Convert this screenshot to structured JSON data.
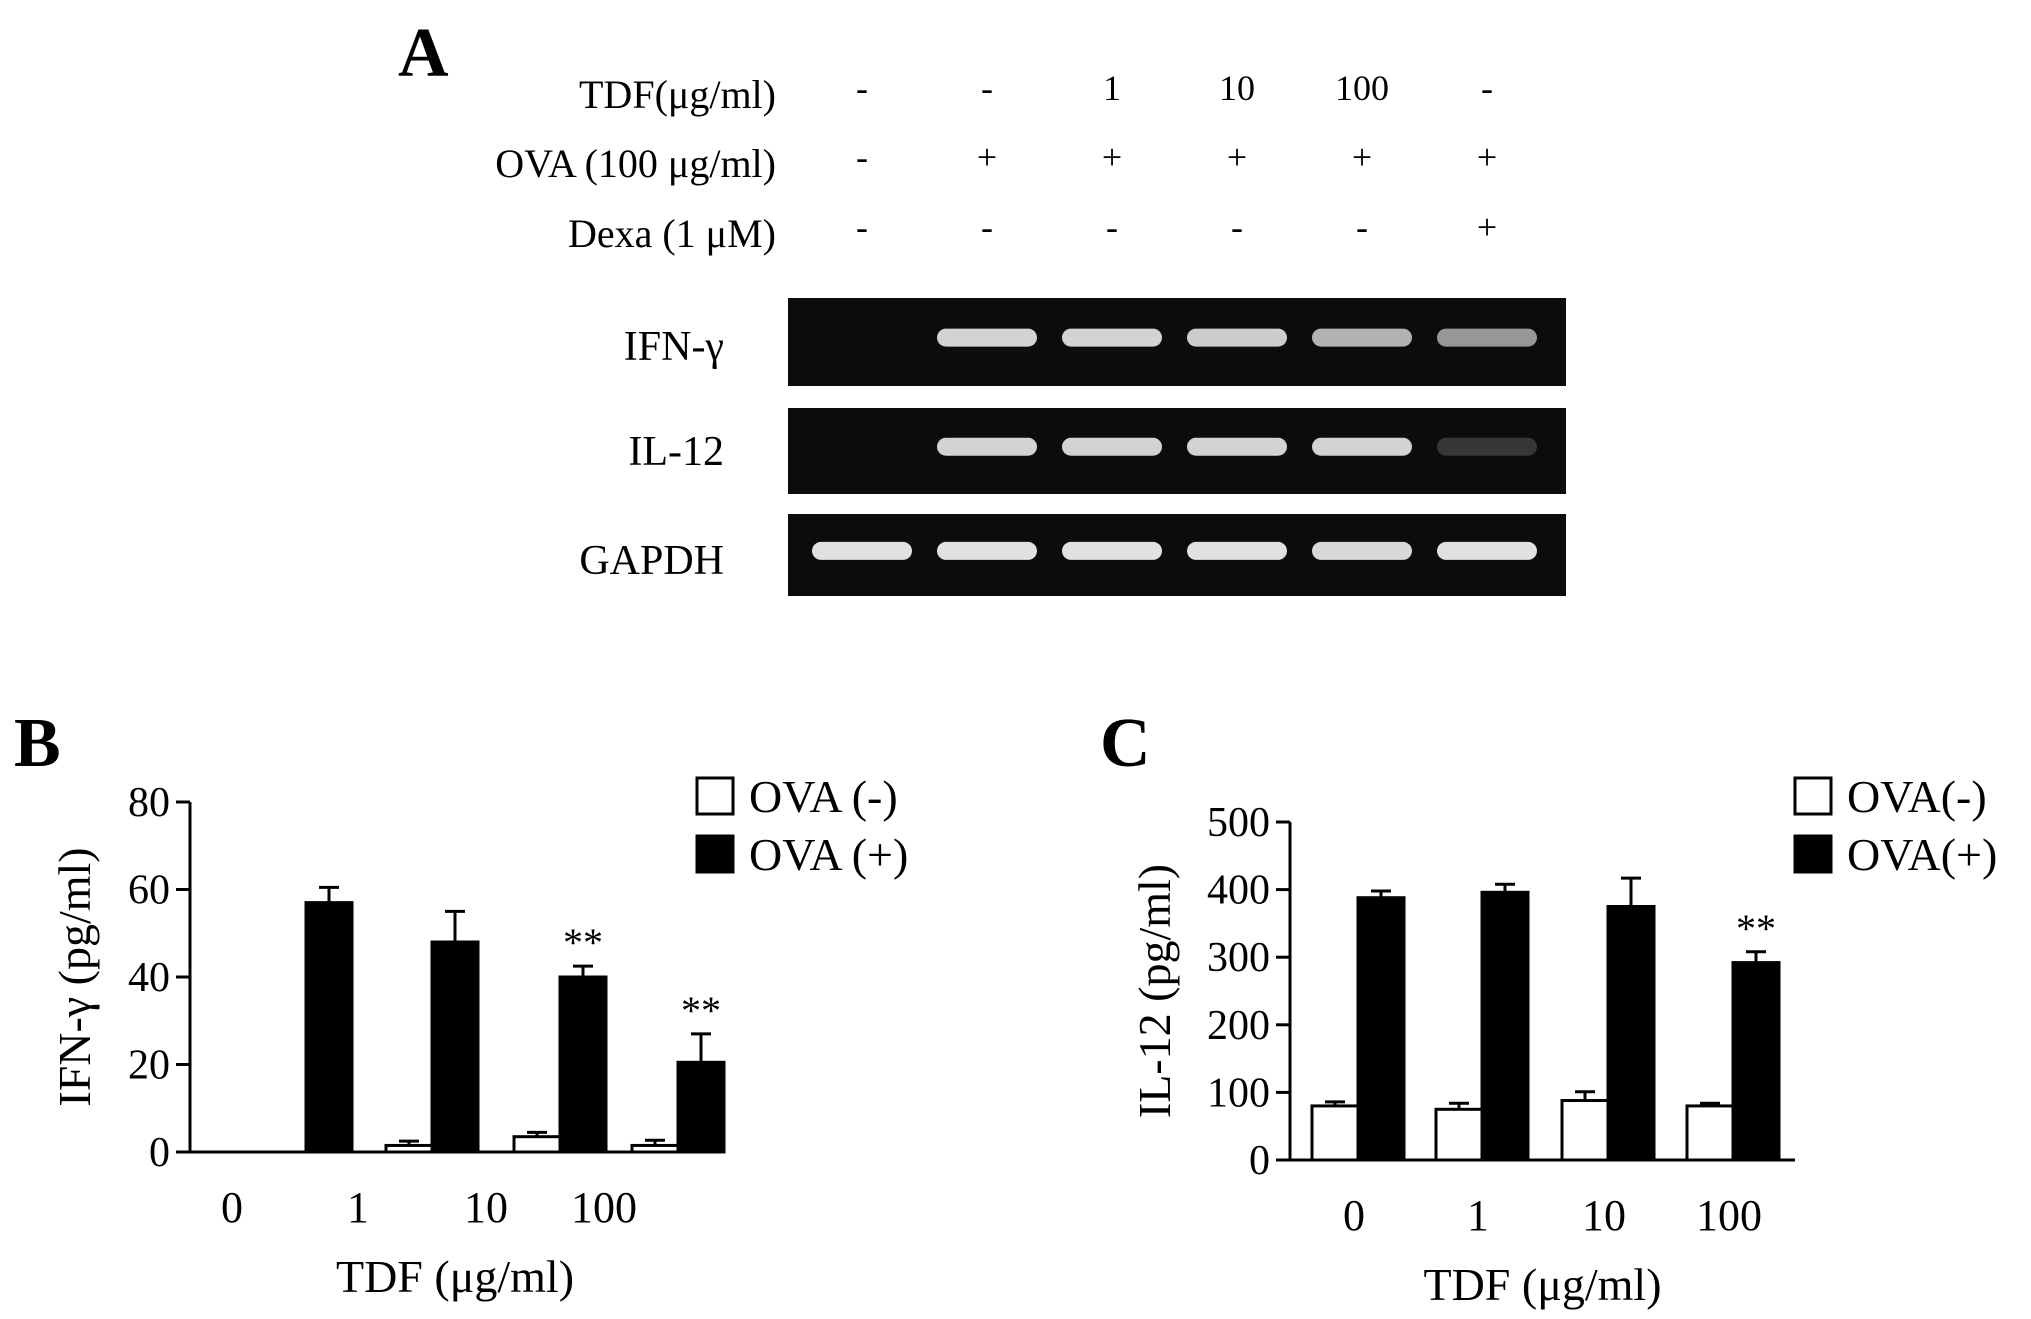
{
  "panel_a": {
    "letter": "A",
    "conditions": [
      {
        "label": "TDF(μg/ml)",
        "values": [
          "-",
          "-",
          "1",
          "10",
          "100",
          "-"
        ]
      },
      {
        "label": "OVA (100 μg/ml)",
        "values": [
          "-",
          "+",
          "+",
          "+",
          "+",
          "+"
        ]
      },
      {
        "label": "Dexa (1 μM)",
        "values": [
          "-",
          "-",
          "-",
          "-",
          "-",
          "+"
        ]
      }
    ],
    "gels": [
      {
        "label": "IFN-γ",
        "band_intensity": [
          0,
          0.9,
          0.9,
          0.88,
          0.78,
          0.68
        ]
      },
      {
        "label": "IL-12",
        "band_intensity": [
          0,
          0.9,
          0.9,
          0.9,
          0.9,
          0.2
        ]
      },
      {
        "label": "GAPDH",
        "band_intensity": [
          0.95,
          0.95,
          0.95,
          0.95,
          0.92,
          0.95
        ]
      }
    ]
  },
  "chart_data": [
    {
      "type": "bar",
      "panel": "B",
      "categories": [
        "0",
        "1",
        "10",
        "100"
      ],
      "xlabel": "TDF (μg/ml)",
      "ylabel": "IFN-γ  (pg/ml)",
      "ylim": [
        0,
        80
      ],
      "yticks": [
        "0",
        "20",
        "40",
        "60",
        "80"
      ],
      "series": [
        {
          "name": "OVA (-)",
          "color": "#ffffff",
          "values": [
            0,
            1.5,
            3.5,
            1.5
          ],
          "errors": [
            0,
            1,
            1,
            1.2
          ]
        },
        {
          "name": "OVA (+)",
          "color": "#000000",
          "values": [
            57,
            48,
            40,
            20.5
          ],
          "errors": [
            3.5,
            7,
            2.5,
            6.5
          ]
        }
      ],
      "annotations": [
        {
          "category": "10",
          "series": "OVA (+)",
          "text": "**"
        },
        {
          "category": "100",
          "series": "OVA (+)",
          "text": "**"
        }
      ],
      "legend": "top-right"
    },
    {
      "type": "bar",
      "panel": "C",
      "categories": [
        "0",
        "1",
        "10",
        "100"
      ],
      "xlabel": "TDF (μg/ml)",
      "ylabel": "IL-12 (pg/ml)",
      "ylim": [
        0,
        500
      ],
      "yticks": [
        "0",
        "100",
        "200",
        "300",
        "400",
        "500"
      ],
      "series": [
        {
          "name": "OVA(-)",
          "color": "#ffffff",
          "values": [
            80,
            75,
            88,
            80
          ],
          "errors": [
            6,
            9,
            13,
            4
          ]
        },
        {
          "name": "OVA(+)",
          "color": "#000000",
          "values": [
            388,
            396,
            375,
            292
          ],
          "errors": [
            10,
            12,
            42,
            16
          ]
        }
      ],
      "annotations": [
        {
          "category": "100",
          "series": "OVA(+)",
          "text": "**"
        }
      ],
      "legend": "top-right"
    }
  ]
}
